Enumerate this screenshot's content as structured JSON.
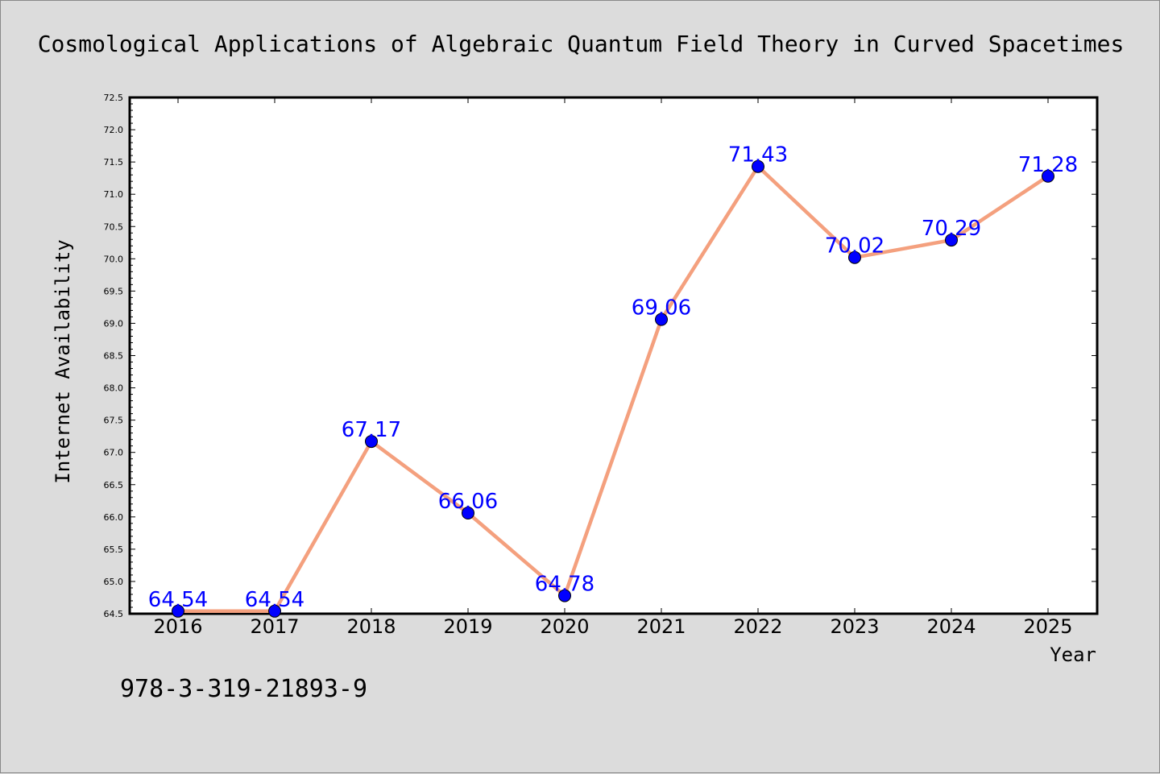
{
  "chart_data": {
    "type": "line",
    "title": "Cosmological Applications of Algebraic Quantum Field Theory in Curved Spacetimes",
    "xlabel": "Year",
    "ylabel": "Internet Availability",
    "categories": [
      "2016",
      "2017",
      "2018",
      "2019",
      "2020",
      "2021",
      "2022",
      "2023",
      "2024",
      "2025"
    ],
    "series": [
      {
        "values": [
          64.54,
          64.54,
          67.17,
          66.06,
          64.78,
          69.06,
          71.43,
          70.02,
          70.29,
          71.28
        ]
      }
    ],
    "data_labels": [
      "64.54",
      "64.54",
      "67.17",
      "66.06",
      "64.78",
      "69.06",
      "71.43",
      "70.02",
      "70.29",
      "71.28"
    ],
    "ylim": [
      64.5,
      72.5
    ],
    "yticks": [
      "64.5",
      "65.0",
      "65.5",
      "66.0",
      "66.5",
      "67.0",
      "67.5",
      "68.0",
      "68.5",
      "69.0",
      "69.5",
      "70.0",
      "70.5",
      "71.0",
      "71.5",
      "72.0",
      "72.5"
    ],
    "grid": false,
    "legend": "none",
    "colors": {
      "line": "#f4a07e",
      "marker": "#0000ff",
      "data_label": "#0000ff",
      "background": "#dcdcdc",
      "plot_background": "#ffffff"
    }
  },
  "footnote": "978-3-319-21893-9"
}
